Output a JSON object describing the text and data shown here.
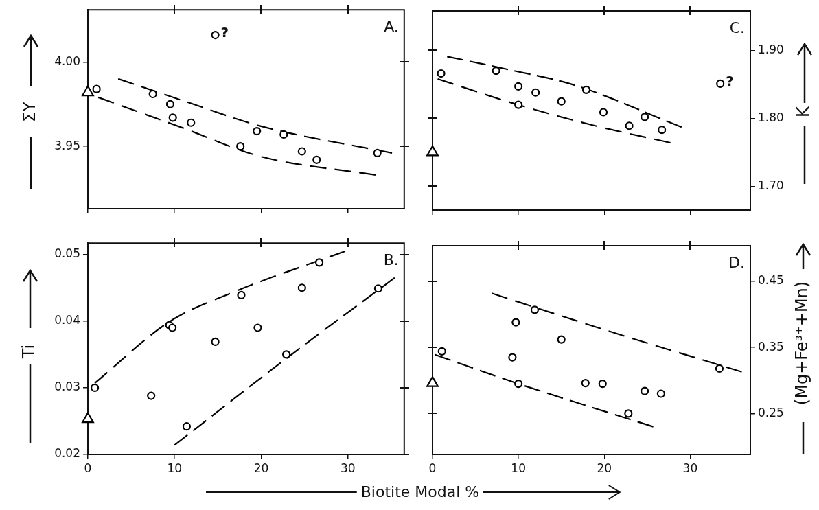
{
  "chart_data": [
    {
      "type": "scatter",
      "ylabel": "ΣY",
      "annotations": [
        "A.",
        {
          "text": "?",
          "x": 14.7,
          "y": 4.016
        }
      ],
      "xlim": [
        0,
        36.5
      ],
      "xticks": [
        {
          "value": 0,
          "label": null
        },
        {
          "value": 10,
          "label": null
        },
        {
          "value": 20,
          "label": null
        },
        {
          "value": 30,
          "label": null
        }
      ],
      "ylim": [
        3.913,
        4.031
      ],
      "yticks": [
        {
          "value": 3.95,
          "label": "3.95"
        },
        {
          "value": 4,
          "label": "4.00"
        }
      ],
      "tick_labels": "y",
      "legend": false,
      "series": [
        {
          "marker": "circle",
          "color": "#000000",
          "x": [
            1,
            7.5,
            9.5,
            9.8,
            11.9,
            17.6,
            19.5,
            22.6,
            24.7,
            26.4,
            33.4,
            14.7
          ],
          "values": [
            3.984,
            3.981,
            3.975,
            3.967,
            3.964,
            3.95,
            3.959,
            3.957,
            3.947,
            3.942,
            3.946,
            4.016
          ]
        },
        {
          "marker": "triangle",
          "color": "#000000",
          "x": [
            0
          ],
          "values": [
            3.982
          ]
        },
        {
          "type": "line",
          "marker": "none",
          "line_style": "dashed",
          "color": "#000000",
          "x": [
            3.5,
            11.6,
            19.9,
            35.1
          ],
          "values": [
            3.99,
            3.976,
            3.962,
            3.946
          ]
        },
        {
          "type": "line",
          "marker": "none",
          "line_style": "dashed",
          "color": "#000000",
          "x": [
            1.2,
            10.9,
            19.9,
            33.2
          ],
          "values": [
            3.979,
            3.961,
            3.944,
            3.933
          ]
        }
      ]
    },
    {
      "type": "scatter",
      "ylabel": "K",
      "annotations": [
        "C.",
        {
          "text": "?",
          "x": 33.5,
          "y": 1.851
        }
      ],
      "xlim": [
        0,
        37
      ],
      "xticks": [
        {
          "value": 0,
          "label": null
        },
        {
          "value": 10,
          "label": null
        },
        {
          "value": 20,
          "label": null
        },
        {
          "value": 30,
          "label": null
        }
      ],
      "ylim": [
        1.665,
        1.958
      ],
      "yticks": [
        {
          "value": 1.7,
          "label": "1.70"
        },
        {
          "value": 1.8,
          "label": "1.80"
        },
        {
          "value": 1.9,
          "label": "1.90"
        }
      ],
      "tick_labels": "y",
      "legend": false,
      "series": [
        {
          "marker": "circle",
          "color": "#000000",
          "x": [
            1,
            7.4,
            10,
            10,
            12,
            15,
            17.9,
            19.9,
            22.9,
            24.7,
            26.7,
            33.5
          ],
          "values": [
            1.866,
            1.87,
            1.847,
            1.82,
            1.838,
            1.825,
            1.842,
            1.809,
            1.789,
            1.802,
            1.783,
            1.851
          ]
        },
        {
          "marker": "triangle",
          "color": "#000000",
          "x": [
            0
          ],
          "values": [
            1.75
          ]
        },
        {
          "type": "line",
          "marker": "none",
          "line_style": "dashed",
          "color": "#000000",
          "x": [
            1.7,
            9.1,
            16.5,
            29
          ],
          "values": [
            1.891,
            1.871,
            1.849,
            1.787
          ]
        },
        {
          "type": "line",
          "marker": "none",
          "line_style": "dashed",
          "color": "#000000",
          "x": [
            0.6,
            9.7,
            18.3,
            27.7
          ],
          "values": [
            1.858,
            1.821,
            1.791,
            1.764
          ]
        }
      ]
    },
    {
      "type": "scatter",
      "ylabel": "Ti",
      "xlabel": "Biotite Modal %",
      "annotations": [
        "B."
      ],
      "xlim": [
        0,
        36.5
      ],
      "xticks": [
        0,
        10,
        20,
        30
      ],
      "ylim": [
        0.02,
        0.0517
      ],
      "yticks": [
        {
          "value": 0.02,
          "label": "0.02"
        },
        {
          "value": 0.03,
          "label": "0.03"
        },
        {
          "value": 0.04,
          "label": "0.04"
        },
        {
          "value": 0.05,
          "label": "0.05"
        }
      ],
      "tick_labels": "xy",
      "legend": false,
      "series": [
        {
          "marker": "circle",
          "color": "#000000",
          "x": [
            0.8,
            7.3,
            9.4,
            9.75,
            11.4,
            14.7,
            17.7,
            19.6,
            22.9,
            24.7,
            26.7,
            33.5
          ],
          "values": [
            0.03,
            0.0288,
            0.0394,
            0.039,
            0.0242,
            0.0369,
            0.0439,
            0.039,
            0.035,
            0.045,
            0.0488,
            0.0449
          ]
        },
        {
          "marker": "triangle",
          "color": "#000000",
          "x": [
            0
          ],
          "values": [
            0.0253
          ]
        },
        {
          "type": "line",
          "marker": "none",
          "line_style": "dashed",
          "color": "#000000",
          "x": [
            0.8,
            9.4,
            16.9,
            29.7
          ],
          "values": [
            0.0307,
            0.0399,
            0.0444,
            0.0505
          ]
        },
        {
          "type": "line",
          "marker": "none",
          "line_style": "dashed",
          "color": "#000000",
          "x": [
            10,
            22.9,
            35.4
          ],
          "values": [
            0.0214,
            0.0344,
            0.0465
          ]
        }
      ]
    },
    {
      "type": "scatter",
      "ylabel": "(Mg+Fe³⁺+Mn)",
      "annotations": [
        "D."
      ],
      "xlim": [
        0,
        37
      ],
      "xticks": [
        0,
        10,
        20,
        30
      ],
      "ylim": [
        0.188,
        0.504
      ],
      "yticks": [
        {
          "value": 0.25,
          "label": "0.25"
        },
        {
          "value": 0.35,
          "label": "0.35"
        },
        {
          "value": 0.45,
          "label": "0.45"
        }
      ],
      "tick_labels": "xy",
      "legend": false,
      "series": [
        {
          "marker": "circle",
          "color": "#000000",
          "x": [
            1.1,
            9.7,
            9.3,
            10,
            11.9,
            15,
            17.8,
            19.8,
            22.8,
            24.7,
            26.6,
            33.4
          ],
          "values": [
            0.344,
            0.388,
            0.335,
            0.295,
            0.407,
            0.362,
            0.296,
            0.295,
            0.25,
            0.284,
            0.28,
            0.318
          ]
        },
        {
          "marker": "triangle",
          "color": "#000000",
          "x": [
            0
          ],
          "values": [
            0.296
          ]
        },
        {
          "type": "line",
          "marker": "none",
          "line_style": "dashed",
          "color": "#000000",
          "x": [
            6.9,
            20.2,
            36
          ],
          "values": [
            0.432,
            0.376,
            0.313
          ]
        },
        {
          "type": "line",
          "marker": "none",
          "line_style": "dashed",
          "color": "#000000",
          "x": [
            0.3,
            10,
            25.7
          ],
          "values": [
            0.339,
            0.295,
            0.23
          ]
        }
      ]
    }
  ]
}
